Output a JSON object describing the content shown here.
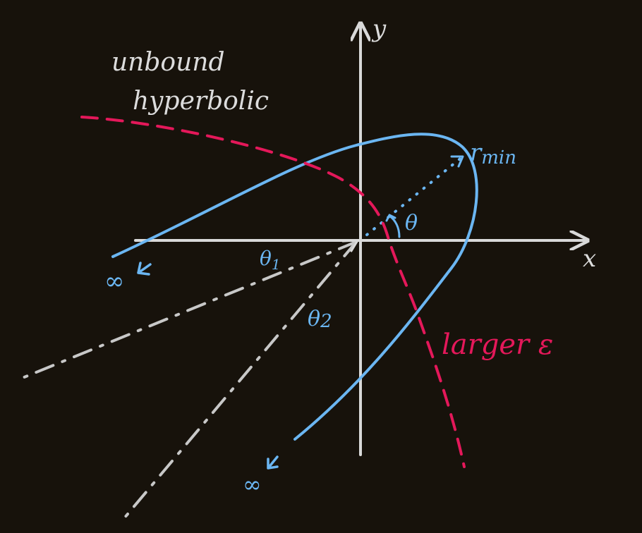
{
  "labels": {
    "unbound_line1": "unbound",
    "unbound_line2": "hyperbolic",
    "x_axis": "x",
    "y_axis": "y",
    "r_min": "r",
    "r_min_sub": "min",
    "theta": "θ",
    "theta_1": "θ",
    "theta_1_sub": "1",
    "theta_2": "θ",
    "theta_2_sub": "2",
    "infinity_left": "∞",
    "infinity_bottom": "∞",
    "larger_eccentricity": "larger ε"
  },
  "colors": {
    "background": "#17120b",
    "axes": "#d9d9d9",
    "orbit": "#6bb6f2",
    "larger_e_orbit": "#e4185a",
    "asymptotes": "#c8c8c8"
  }
}
